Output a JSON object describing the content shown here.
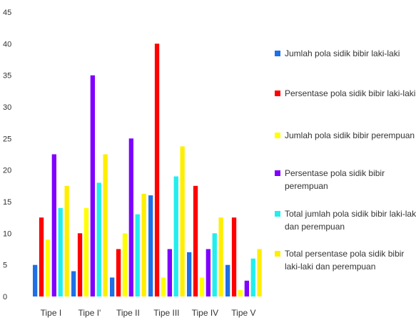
{
  "chart_data": {
    "type": "bar",
    "categories": [
      "Tipe I",
      "Tipe I'",
      "Tipe II",
      "Tipe III",
      "Tipe IV",
      "Tipe V"
    ],
    "ylim": [
      0,
      45
    ],
    "yticks": [
      0,
      5,
      10,
      15,
      20,
      25,
      30,
      35,
      40,
      45
    ],
    "grid": false,
    "legend_position": "right",
    "series": [
      {
        "name": "Jumlah pola sidik bibir laki-laki",
        "color": "#1f6fe6",
        "values": [
          5,
          4,
          3,
          16,
          7,
          5
        ]
      },
      {
        "name": "Persentase pola sidik bibir laki-laki",
        "color": "#ff0000",
        "values": [
          12.5,
          10,
          7.5,
          40,
          17.5,
          12.5
        ]
      },
      {
        "name": "Jumlah pola sidik bibir perempuan",
        "color": "#ffff00",
        "values": [
          9,
          14,
          10,
          3,
          3,
          1
        ]
      },
      {
        "name": "Persentase pola sidik bibir perempuan",
        "color": "#7f00ff",
        "values": [
          22.5,
          35,
          25,
          7.5,
          7.5,
          2.5
        ]
      },
      {
        "name": "Total jumlah pola sidik bibir laki-laki dan perempuan",
        "color": "#22eeee",
        "values": [
          14,
          18,
          13,
          19,
          10,
          6
        ]
      },
      {
        "name": "Total persentase pola sidik bibir laki-laki dan perempuan",
        "color": "#ffee00",
        "values": [
          17.5,
          22.5,
          16.25,
          23.75,
          12.5,
          7.5
        ]
      }
    ]
  }
}
